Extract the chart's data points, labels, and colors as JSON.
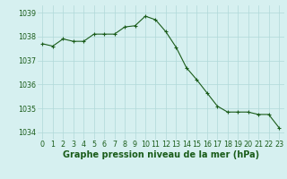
{
  "x": [
    0,
    1,
    2,
    3,
    4,
    5,
    6,
    7,
    8,
    9,
    10,
    11,
    12,
    13,
    14,
    15,
    16,
    17,
    18,
    19,
    20,
    21,
    22,
    23
  ],
  "y": [
    1037.7,
    1037.6,
    1037.9,
    1037.8,
    1037.8,
    1038.1,
    1038.1,
    1038.1,
    1038.4,
    1038.45,
    1038.85,
    1038.7,
    1038.2,
    1037.55,
    1036.7,
    1036.2,
    1035.65,
    1035.1,
    1034.85,
    1034.85,
    1034.85,
    1034.75,
    1034.75,
    1034.2
  ],
  "line_color": "#1a5c1a",
  "marker": "+",
  "bg_color": "#d6f0f0",
  "grid_color": "#b0d8d8",
  "xlabel": "Graphe pression niveau de la mer (hPa)",
  "xlabel_color": "#1a5c1a",
  "ylim": [
    1033.7,
    1039.3
  ],
  "yticks": [
    1034,
    1035,
    1036,
    1037,
    1038,
    1039
  ],
  "xticks": [
    0,
    1,
    2,
    3,
    4,
    5,
    6,
    7,
    8,
    9,
    10,
    11,
    12,
    13,
    14,
    15,
    16,
    17,
    18,
    19,
    20,
    21,
    22,
    23
  ],
  "tick_color": "#1a5c1a",
  "font_size_xlabel": 7.0,
  "font_size_tick": 5.8
}
